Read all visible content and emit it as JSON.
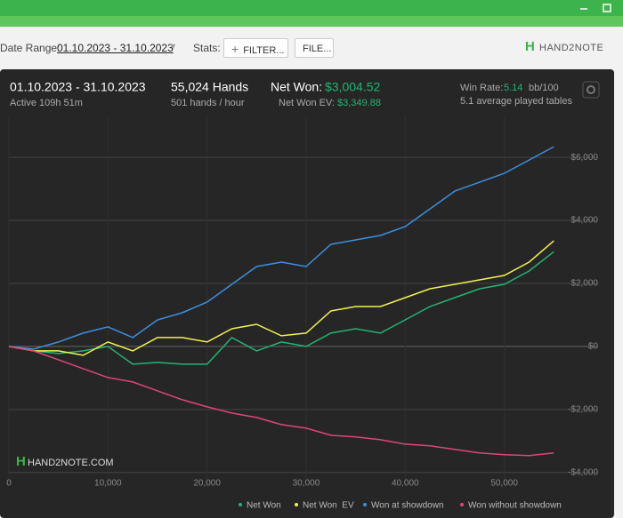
{
  "toolbar": {
    "date_range_label": "Date Range:",
    "date_range": "01.10.2023 - 31.10.2023",
    "stats_label": "Stats:",
    "filter_button": "FILTER...",
    "file_button": "FILE...",
    "logo": "HAND2NOTE"
  },
  "summary": {
    "period": "01.10.2023 - 31.10.2023",
    "active": "Active 109h 51m",
    "hands": "55,024 Hands",
    "hands_per_hour": "501 hands / hour",
    "net_won_label": "Net Won:",
    "net_won": "$3,004.52",
    "net_won_ev_label": "Net Won  EV:",
    "net_won_ev": "$3,349.88",
    "win_rate_label": "Win Rate:",
    "win_rate": "5.14",
    "win_rate_unit": "bb/100",
    "tables": "5.1 average played tables"
  },
  "chart_data": {
    "type": "line",
    "watermark": "HAND2NOTE.COM",
    "x": [
      0,
      2500,
      5000,
      7500,
      10000,
      12500,
      15000,
      17500,
      20000,
      22500,
      25000,
      27500,
      30000,
      32500,
      35000,
      37500,
      40000,
      42500,
      45000,
      47500,
      50000,
      52500,
      55000
    ],
    "series": [
      {
        "name": "Net Won",
        "color": "#22b573",
        "values": [
          0,
          -141,
          -225,
          -141,
          0,
          -563,
          -507,
          -563,
          -563,
          282,
          -141,
          141,
          0,
          423,
          563,
          423,
          845,
          1268,
          1549,
          1831,
          1972,
          2394,
          3005
        ]
      },
      {
        "name": "Net Won  EV",
        "color": "#f2f250",
        "values": [
          0,
          -141,
          -141,
          -282,
          141,
          -141,
          282,
          282,
          141,
          563,
          704,
          338,
          423,
          1127,
          1268,
          1268,
          1549,
          1831,
          1972,
          2113,
          2254,
          2676,
          3350
        ]
      },
      {
        "name": "Won at showdown",
        "color": "#3d8fe0",
        "values": [
          0,
          -85,
          141,
          423,
          620,
          282,
          845,
          1070,
          1408,
          1972,
          2535,
          2676,
          2535,
          3239,
          3380,
          3521,
          3803,
          4366,
          4930,
          5211,
          5493,
          5915,
          6338
        ]
      },
      {
        "name": "Won without showdown",
        "color": "#e0457b",
        "values": [
          0,
          -141,
          -423,
          -704,
          -986,
          -1127,
          -1408,
          -1690,
          -1915,
          -2113,
          -2254,
          -2479,
          -2592,
          -2817,
          -2873,
          -2958,
          -3099,
          -3155,
          -3268,
          -3380,
          -3437,
          -3465,
          -3380
        ]
      }
    ],
    "xlim": [
      0,
      56500
    ],
    "ylim": [
      -4400,
      7300
    ],
    "xticks": [
      0,
      {
        "value": 10000,
        "label": "10,000"
      },
      {
        "value": 20000,
        "label": "20,000"
      },
      {
        "value": 30000,
        "label": "30,000"
      },
      {
        "value": 40000,
        "label": "40,000"
      },
      {
        "value": 50000,
        "label": "50,000"
      }
    ],
    "yticks": [
      {
        "value": -4000,
        "label": "-$4,000"
      },
      {
        "value": -2000,
        "label": "-$2,000"
      },
      {
        "value": 0,
        "label": "$0"
      },
      {
        "value": 2000,
        "label": "$2,000"
      },
      {
        "value": 4000,
        "label": "$4,000"
      },
      {
        "value": 6000,
        "label": "$6,000"
      }
    ],
    "grid": true
  }
}
